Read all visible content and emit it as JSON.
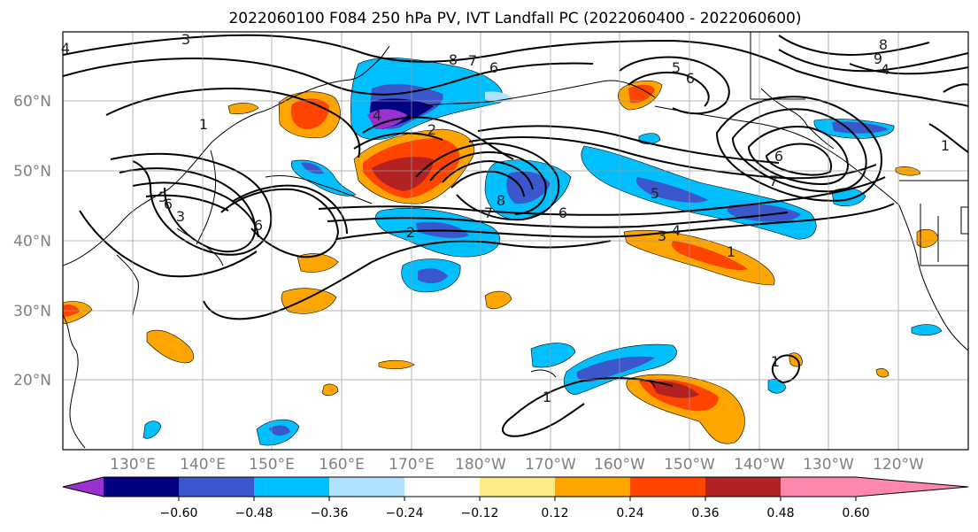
{
  "title": "2022060100 F084 250 hPa PV, IVT Landfall PC (2022060400 - 2022060600)",
  "map": {
    "lat_labels": [
      "60°N",
      "50°N",
      "40°N",
      "30°N",
      "20°N"
    ],
    "lon_labels": [
      "130°E",
      "140°E",
      "150°E",
      "160°E",
      "170°E",
      "180°W",
      "170°W",
      "160°W",
      "150°W",
      "140°W",
      "130°W",
      "120°W"
    ],
    "contour_labels": [
      "3",
      "4",
      "8",
      "7",
      "6",
      "5",
      "6",
      "8",
      "9",
      "4",
      "1",
      "4",
      "2",
      "5",
      "6",
      "7",
      "8",
      "7",
      "6",
      "5",
      "6",
      "3",
      "6",
      "2",
      "3",
      "4",
      "1",
      "1",
      "1",
      "1"
    ]
  },
  "colorbar": {
    "colors": [
      "#9b30d0",
      "#000080",
      "#3a58cc",
      "#00bfff",
      "#aee0ff",
      "#ffffff",
      "#ffeb85",
      "#ffa500",
      "#ff4400",
      "#b22222",
      "#ff88aa"
    ],
    "tick_labels": [
      "−0.60",
      "−0.48",
      "−0.36",
      "−0.24",
      "−0.12",
      "0.12",
      "0.24",
      "0.36",
      "0.48",
      "0.60"
    ]
  }
}
